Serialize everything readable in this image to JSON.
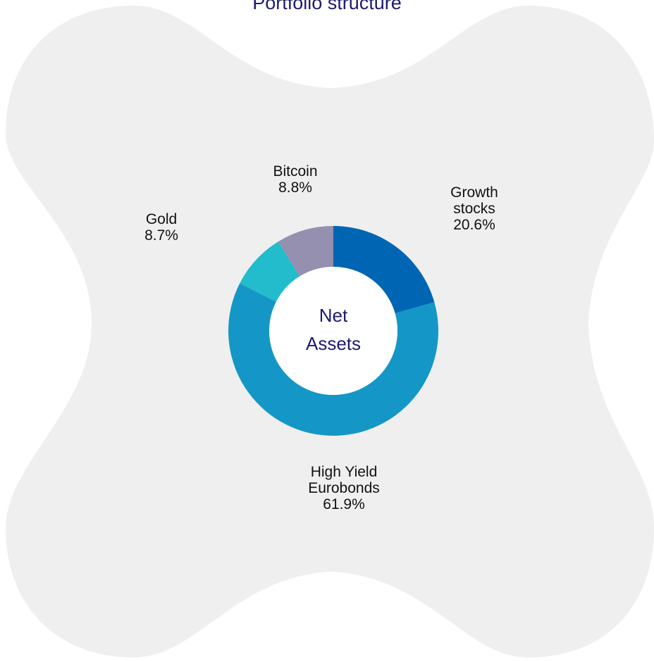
{
  "chart_data": {
    "type": "pie",
    "title": "Portfolio structure",
    "center_label": [
      "Net",
      "Assets"
    ],
    "slices": [
      {
        "name_lines": [
          "Growth",
          "stocks"
        ],
        "value": 20.6,
        "label": "20.6%",
        "color": "#0066b3"
      },
      {
        "name_lines": [
          "High Yield",
          "Eurobonds"
        ],
        "value": 61.9,
        "label": "61.9%",
        "color": "#1497c6"
      },
      {
        "name_lines": [
          "Gold"
        ],
        "value": 8.7,
        "label": "8.7%",
        "color": "#22bccc"
      },
      {
        "name_lines": [
          "Bitcoin"
        ],
        "value": 8.8,
        "label": "8.8%",
        "color": "#958fb0"
      }
    ]
  },
  "colors": {
    "background_shape": "#efeff0",
    "title": "#1f1a6e",
    "center_fill": "#ffffff"
  }
}
